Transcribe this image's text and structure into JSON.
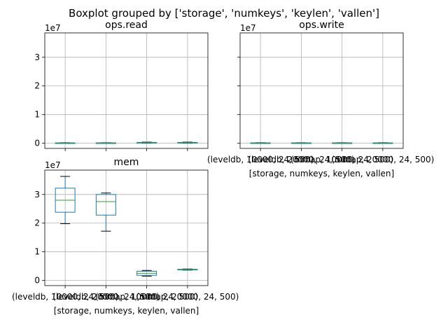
{
  "suptitle": "Boxplot grouped by ['storage', 'numkeys', 'keylen', 'vallen']",
  "colors": {
    "box": "#1f77b4",
    "median": "#2ca02c",
    "grid": "#b0b0b0",
    "whisker": "#1f77b4"
  },
  "chart_data": [
    {
      "type": "box",
      "title": "ops.read",
      "xlabel": "",
      "y_offset_label": "1e7",
      "ylim": [
        -0.18,
        3.85
      ],
      "yticks": [
        0,
        1,
        2,
        3
      ],
      "grid": true,
      "categories": [
        "",
        "",
        "",
        ""
      ],
      "boxes": [
        {
          "whislo": 0.0,
          "q1": 0.005,
          "med": 0.01,
          "q3": 0.015,
          "whishi": 0.02
        },
        {
          "whislo": 0.0,
          "q1": 0.005,
          "med": 0.01,
          "q3": 0.015,
          "whishi": 0.02
        },
        {
          "whislo": 0.0,
          "q1": 0.01,
          "med": 0.02,
          "q3": 0.03,
          "whishi": 0.04
        },
        {
          "whislo": 0.0,
          "q1": 0.01,
          "med": 0.02,
          "q3": 0.03,
          "whishi": 0.04
        }
      ]
    },
    {
      "type": "box",
      "title": "ops.write",
      "xlabel": "[storage, numkeys, keylen, vallen]",
      "y_offset_label": "1e7",
      "ylim": [
        -0.18,
        3.85
      ],
      "yticks": [
        0,
        1,
        2,
        3
      ],
      "grid": true,
      "categories": [
        "(leveldb, 10000, 24, 500)",
        "(leveldb, 20000, 24, 500)",
        "(mmap, 10000, 24, 500)",
        "(mmap, 20000, 24, 500)"
      ],
      "boxes": [
        {
          "whislo": 0.0,
          "q1": 0.005,
          "med": 0.01,
          "q3": 0.015,
          "whishi": 0.02
        },
        {
          "whislo": 0.0,
          "q1": 0.005,
          "med": 0.01,
          "q3": 0.015,
          "whishi": 0.02
        },
        {
          "whislo": 0.0,
          "q1": 0.005,
          "med": 0.01,
          "q3": 0.015,
          "whishi": 0.02
        },
        {
          "whislo": 0.0,
          "q1": 0.005,
          "med": 0.01,
          "q3": 0.015,
          "whishi": 0.02
        }
      ]
    },
    {
      "type": "box",
      "title": "mem",
      "xlabel": "[storage, numkeys, keylen, vallen]",
      "y_offset_label": "1e7",
      "ylim": [
        -0.18,
        3.85
      ],
      "yticks": [
        0,
        1,
        2,
        3
      ],
      "grid": true,
      "categories": [
        "(leveldb, 10000, 24, 500)",
        "(leveldb, 20000, 24, 500)",
        "(mmap, 10000, 24, 500)",
        "(mmap, 20000, 24, 500)"
      ],
      "boxes": [
        {
          "whislo": 1.98,
          "q1": 2.38,
          "med": 2.8,
          "q3": 3.22,
          "whishi": 3.63
        },
        {
          "whislo": 1.72,
          "q1": 2.28,
          "med": 2.75,
          "q3": 3.0,
          "whishi": 3.05
        },
        {
          "whislo": 0.15,
          "q1": 0.18,
          "med": 0.25,
          "q3": 0.32,
          "whishi": 0.35
        },
        {
          "whislo": 0.36,
          "q1": 0.37,
          "med": 0.38,
          "q3": 0.39,
          "whishi": 0.4
        }
      ]
    }
  ]
}
